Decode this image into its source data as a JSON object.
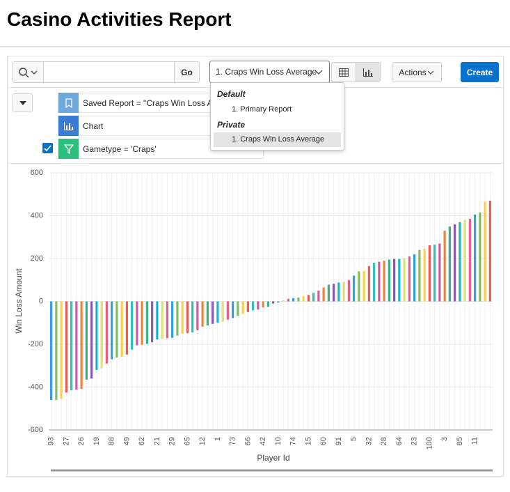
{
  "header": {
    "title": "Casino Activities Report"
  },
  "toolbar": {
    "go": "Go",
    "report_select": "1. Craps Win Loss Average",
    "actions": "Actions",
    "create": "Create"
  },
  "filters": [
    {
      "label": "Saved Report = \"Craps Win Loss Average\""
    },
    {
      "label": "Chart"
    },
    {
      "label": "Gametype = 'Craps'"
    }
  ],
  "dropdown": {
    "groups": [
      {
        "name": "Default",
        "items": [
          "1. Primary Report"
        ]
      },
      {
        "name": "Private",
        "items": [
          "1. Craps Win Loss Average"
        ]
      }
    ]
  },
  "chart_data": {
    "type": "bar",
    "x_label": "Player Id",
    "y_label": "Win Loss Amount",
    "categories": [
      "93",
      null,
      null,
      "27",
      null,
      null,
      "26",
      null,
      null,
      "19",
      null,
      null,
      "88",
      null,
      null,
      "49",
      null,
      null,
      "62",
      null,
      null,
      "21",
      null,
      null,
      "29",
      null,
      null,
      "65",
      null,
      null,
      "12",
      null,
      null,
      "1",
      null,
      null,
      "73",
      null,
      null,
      "66",
      null,
      null,
      "42",
      null,
      null,
      "10",
      null,
      null,
      "74",
      null,
      null,
      "15",
      null,
      null,
      "60",
      null,
      null,
      "91",
      null,
      null,
      "5",
      null,
      null,
      "32",
      null,
      null,
      "28",
      null,
      null,
      "64",
      null,
      null,
      "23",
      null,
      null,
      "100",
      null,
      null,
      "3",
      null,
      null,
      "85",
      null,
      null,
      "11",
      null,
      null,
      null
    ],
    "values": [
      -460,
      -460,
      -455,
      -425,
      -415,
      -412,
      -408,
      -365,
      -360,
      -320,
      -312,
      -290,
      -270,
      -262,
      -258,
      -248,
      -225,
      -205,
      -202,
      -198,
      -190,
      -178,
      -175,
      -172,
      -170,
      -160,
      -150,
      -148,
      -145,
      -135,
      -118,
      -112,
      -105,
      -100,
      -95,
      -85,
      -78,
      -68,
      -58,
      -50,
      -42,
      -38,
      -28,
      -25,
      -10,
      -5,
      5,
      12,
      15,
      18,
      25,
      30,
      40,
      50,
      65,
      78,
      82,
      88,
      92,
      100,
      120,
      140,
      142,
      165,
      180,
      185,
      190,
      195,
      198,
      198,
      200,
      210,
      220,
      240,
      245,
      262,
      265,
      270,
      330,
      350,
      360,
      370,
      380,
      385,
      405,
      415,
      465,
      470
    ],
    "colors": [
      "#309fdb",
      "#81bb5f",
      "#fbce4a",
      "#e95b54",
      "#2ebfbc",
      "#cb5a9e",
      "#ed813e",
      "#3caf85",
      "#8a57b0",
      "#13b6cf",
      "#dde176",
      "#e85d88"
    ],
    "ylim": [
      -600,
      600
    ],
    "yticks": [
      -600,
      -400,
      -200,
      0,
      200,
      400,
      600
    ],
    "grid": true
  }
}
